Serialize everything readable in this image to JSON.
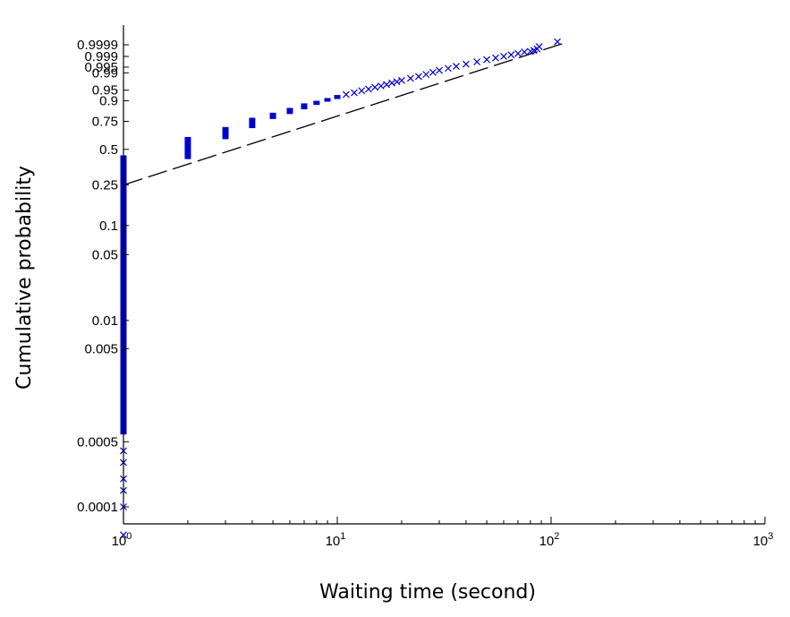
{
  "chart_data": {
    "type": "scatter",
    "title": "",
    "xlabel": "Waiting time (second)",
    "ylabel": "Cumulative probability",
    "x_scale": "log",
    "y_scale": "weibull-probability",
    "xlim": [
      1,
      1000
    ],
    "ylim": [
      5e-05,
      0.99999
    ],
    "x_ticks": [
      {
        "value": 1,
        "base": "10",
        "exp": "0"
      },
      {
        "value": 10,
        "base": "10",
        "exp": "1"
      },
      {
        "value": 100,
        "base": "10",
        "exp": "2"
      },
      {
        "value": 1000,
        "base": "10",
        "exp": "3"
      }
    ],
    "y_ticks": [
      {
        "value": 0.0001,
        "label": "0.0001"
      },
      {
        "value": 0.0005,
        "label": "0.0005"
      },
      {
        "value": 0.005,
        "label": "0.005"
      },
      {
        "value": 0.01,
        "label": "0.01"
      },
      {
        "value": 0.05,
        "label": "0.05"
      },
      {
        "value": 0.1,
        "label": "0.1"
      },
      {
        "value": 0.25,
        "label": "0.25"
      },
      {
        "value": 0.5,
        "label": "0.5"
      },
      {
        "value": 0.75,
        "label": "0.75"
      },
      {
        "value": 0.9,
        "label": "0.9"
      },
      {
        "value": 0.95,
        "label": "0.95"
      },
      {
        "value": 0.99,
        "label": "0.99"
      },
      {
        "value": 0.995,
        "label": "0.995"
      },
      {
        "value": 0.999,
        "label": "0.999"
      },
      {
        "value": 0.9999,
        "label": "0.9999"
      }
    ],
    "reference_line": {
      "style": "dashed",
      "color": "#000000",
      "points": [
        [
          1,
          0.25
        ],
        [
          120,
          0.99995
        ]
      ]
    },
    "series": [
      {
        "marker": "x",
        "color": "#0000cc",
        "groups": [
          {
            "x": 1,
            "p_min": 5e-05,
            "p_max": 0.45
          },
          {
            "x": 2,
            "p_min": 0.42,
            "p_max": 0.61
          },
          {
            "x": 3,
            "p_min": 0.59,
            "p_max": 0.7
          },
          {
            "x": 4,
            "p_min": 0.69,
            "p_max": 0.78
          },
          {
            "x": 5,
            "p_min": 0.77,
            "p_max": 0.82
          },
          {
            "x": 6,
            "p_min": 0.81,
            "p_max": 0.855
          },
          {
            "x": 7,
            "p_min": 0.845,
            "p_max": 0.885
          },
          {
            "x": 8,
            "p_min": 0.875,
            "p_max": 0.9
          },
          {
            "x": 9,
            "p_min": 0.895,
            "p_max": 0.915
          },
          {
            "x": 10,
            "p_min": 0.91,
            "p_max": 0.93
          }
        ],
        "points": [
          [
            11,
            0.932
          ],
          [
            12,
            0.94
          ],
          [
            13,
            0.948
          ],
          [
            14,
            0.954
          ],
          [
            15,
            0.96
          ],
          [
            16,
            0.964
          ],
          [
            17,
            0.968
          ],
          [
            18,
            0.972
          ],
          [
            19,
            0.975
          ],
          [
            20,
            0.978
          ],
          [
            22,
            0.982
          ],
          [
            24,
            0.985
          ],
          [
            26,
            0.988
          ],
          [
            28,
            0.9905
          ],
          [
            30,
            0.9925
          ],
          [
            33,
            0.9942
          ],
          [
            36,
            0.9955
          ],
          [
            40,
            0.9967
          ],
          [
            45,
            0.9976
          ],
          [
            50,
            0.9983
          ],
          [
            55,
            0.9987
          ],
          [
            60,
            0.999
          ],
          [
            65,
            0.99925
          ],
          [
            70,
            0.9994
          ],
          [
            75,
            0.99955
          ],
          [
            80,
            0.9996
          ],
          [
            83,
            0.99967
          ],
          [
            86,
            0.99975
          ],
          [
            88,
            0.99985
          ],
          [
            107,
            0.99995
          ]
        ]
      }
    ]
  }
}
